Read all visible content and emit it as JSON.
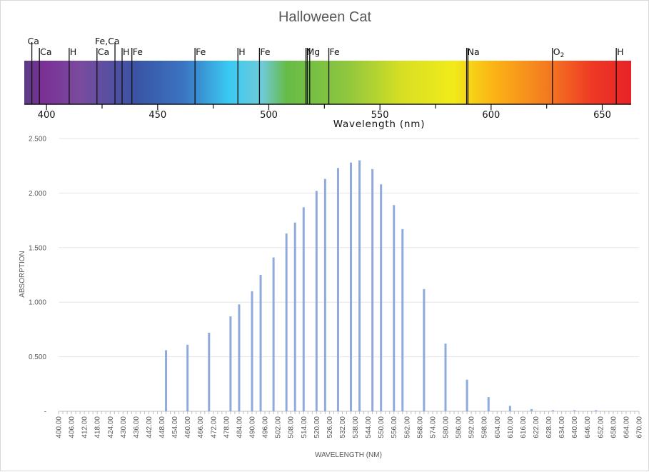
{
  "chart_data": [
    {
      "type": "bar",
      "title": "Halloween Cat",
      "xlabel": "WAVELENGTH (NM)",
      "ylabel": "ABSORPTION",
      "x_tick_labels": [
        "400.00",
        "406.00",
        "412.00",
        "418.00",
        "424.00",
        "430.00",
        "436.00",
        "442.00",
        "448.00",
        "454.00",
        "460.00",
        "466.00",
        "472.00",
        "478.00",
        "484.00",
        "490.00",
        "496.00",
        "502.00",
        "508.00",
        "514.00",
        "520.00",
        "526.00",
        "532.00",
        "538.00",
        "544.00",
        "550.00",
        "556.00",
        "562.00",
        "568.00",
        "574.00",
        "580.00",
        "586.00",
        "592.00",
        "598.00",
        "604.00",
        "610.00",
        "616.00",
        "622.00",
        "628.00",
        "634.00",
        "640.00",
        "646.00",
        "652.00",
        "658.00",
        "664.00",
        "670.00"
      ],
      "y_tick_labels": [
        "-",
        "0.500",
        "1.000",
        "1.500",
        "2.000",
        "2.500"
      ],
      "x_range": [
        400,
        670
      ],
      "ylim": [
        0,
        2.5
      ],
      "grid": true,
      "bar_color": "#8faadc",
      "points": [
        {
          "x": 450,
          "y": 0.56
        },
        {
          "x": 460,
          "y": 0.61
        },
        {
          "x": 470,
          "y": 0.72
        },
        {
          "x": 480,
          "y": 0.87
        },
        {
          "x": 484,
          "y": 0.98
        },
        {
          "x": 490,
          "y": 1.1
        },
        {
          "x": 494,
          "y": 1.25
        },
        {
          "x": 500,
          "y": 1.41
        },
        {
          "x": 506,
          "y": 1.63
        },
        {
          "x": 510,
          "y": 1.73
        },
        {
          "x": 514,
          "y": 1.87
        },
        {
          "x": 520,
          "y": 2.02
        },
        {
          "x": 524,
          "y": 2.13
        },
        {
          "x": 530,
          "y": 2.23
        },
        {
          "x": 536,
          "y": 2.28
        },
        {
          "x": 540,
          "y": 2.3
        },
        {
          "x": 546,
          "y": 2.22
        },
        {
          "x": 550,
          "y": 2.08
        },
        {
          "x": 556,
          "y": 1.89
        },
        {
          "x": 560,
          "y": 1.67
        },
        {
          "x": 570,
          "y": 1.12
        },
        {
          "x": 580,
          "y": 0.62
        },
        {
          "x": 590,
          "y": 0.29
        },
        {
          "x": 600,
          "y": 0.13
        },
        {
          "x": 610,
          "y": 0.05
        },
        {
          "x": 620,
          "y": 0.02
        },
        {
          "x": 630,
          "y": 0.01
        },
        {
          "x": 640,
          "y": 0.01
        },
        {
          "x": 650,
          "y": 0.01
        }
      ]
    },
    {
      "type": "spectrum",
      "xlabel": "Wavelength (nm)",
      "x_range": [
        390,
        663
      ],
      "x_ticks": [
        400,
        450,
        500,
        550,
        600,
        650
      ],
      "color_stops": [
        {
          "w": 390,
          "color": "#5a3d86"
        },
        {
          "w": 398,
          "color": "#7a2f95"
        },
        {
          "w": 415,
          "color": "#7a4b9e"
        },
        {
          "w": 440,
          "color": "#3a53a4"
        },
        {
          "w": 462,
          "color": "#3b74c2"
        },
        {
          "w": 482,
          "color": "#39c9f2"
        },
        {
          "w": 497,
          "color": "#6fcbd9"
        },
        {
          "w": 508,
          "color": "#66bb47"
        },
        {
          "w": 535,
          "color": "#8ec63f"
        },
        {
          "w": 560,
          "color": "#d7df23"
        },
        {
          "w": 583,
          "color": "#f2eb1a"
        },
        {
          "w": 600,
          "color": "#fbb715"
        },
        {
          "w": 625,
          "color": "#f47b20"
        },
        {
          "w": 645,
          "color": "#ee3a24"
        },
        {
          "w": 663,
          "color": "#e72228"
        }
      ],
      "lines": [
        {
          "w": 393.4,
          "label": "Ca",
          "row": "upper"
        },
        {
          "w": 396.8,
          "label": "Ca",
          "row": "lower"
        },
        {
          "w": 410.2,
          "label": "H",
          "row": "lower"
        },
        {
          "w": 422.7,
          "label": "Ca",
          "row": "lower"
        },
        {
          "w": 430.8,
          "label": "Fe,Ca",
          "row": "upper"
        },
        {
          "w": 434.0,
          "label": "H",
          "row": "lower"
        },
        {
          "w": 438.4,
          "label": "Fe",
          "row": "lower"
        },
        {
          "w": 466.8,
          "label": "Fe",
          "row": "lower"
        },
        {
          "w": 486.1,
          "label": "H",
          "row": "lower"
        },
        {
          "w": 495.8,
          "label": "Fe",
          "row": "lower"
        },
        {
          "w": 516.7,
          "label": "Mg",
          "row": "lower"
        },
        {
          "w": 517.3,
          "label": "",
          "row": "lower"
        },
        {
          "w": 518.4,
          "label": "",
          "row": "lower"
        },
        {
          "w": 527.0,
          "label": "Fe",
          "row": "lower"
        },
        {
          "w": 589.0,
          "label": "Na",
          "row": "lower"
        },
        {
          "w": 589.6,
          "label": "",
          "row": "lower"
        },
        {
          "w": 627.6,
          "label": "O",
          "sub": "2",
          "row": "lower"
        },
        {
          "w": 656.3,
          "label": "H",
          "row": "lower"
        }
      ]
    }
  ]
}
